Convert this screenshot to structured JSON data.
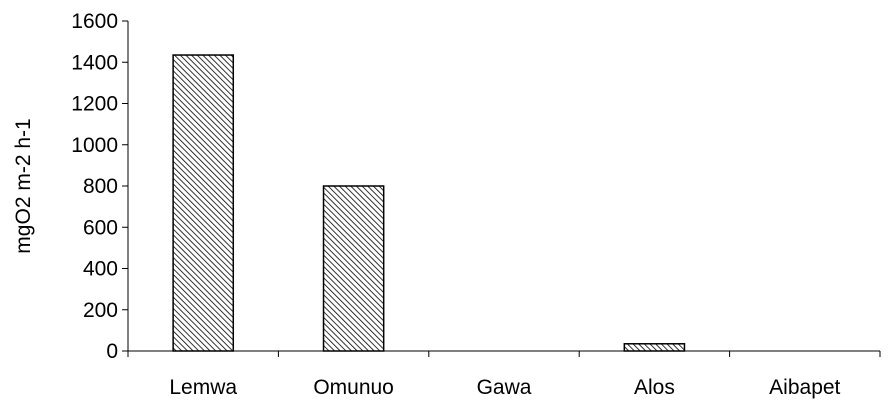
{
  "chart_data": {
    "type": "bar",
    "title": "",
    "xlabel": "",
    "ylabel": "mgO2 m-2 h-1",
    "categories": [
      "Lemwa",
      "Omunuo",
      "Gawa",
      "Alos",
      "Aibapet"
    ],
    "values": [
      1435,
      800,
      0,
      35,
      0
    ],
    "ylim": [
      0,
      1600
    ],
    "yticks": [
      "0",
      "200",
      "400",
      "600",
      "800",
      "1000",
      "1200",
      "1400",
      "1600"
    ],
    "grid": false,
    "legend": "none",
    "bar_fill": "hatched-diagonal",
    "colors": {
      "bar_stroke": "#000000",
      "hatch": "#000000",
      "background": "#ffffff",
      "axis": "#000000"
    }
  }
}
